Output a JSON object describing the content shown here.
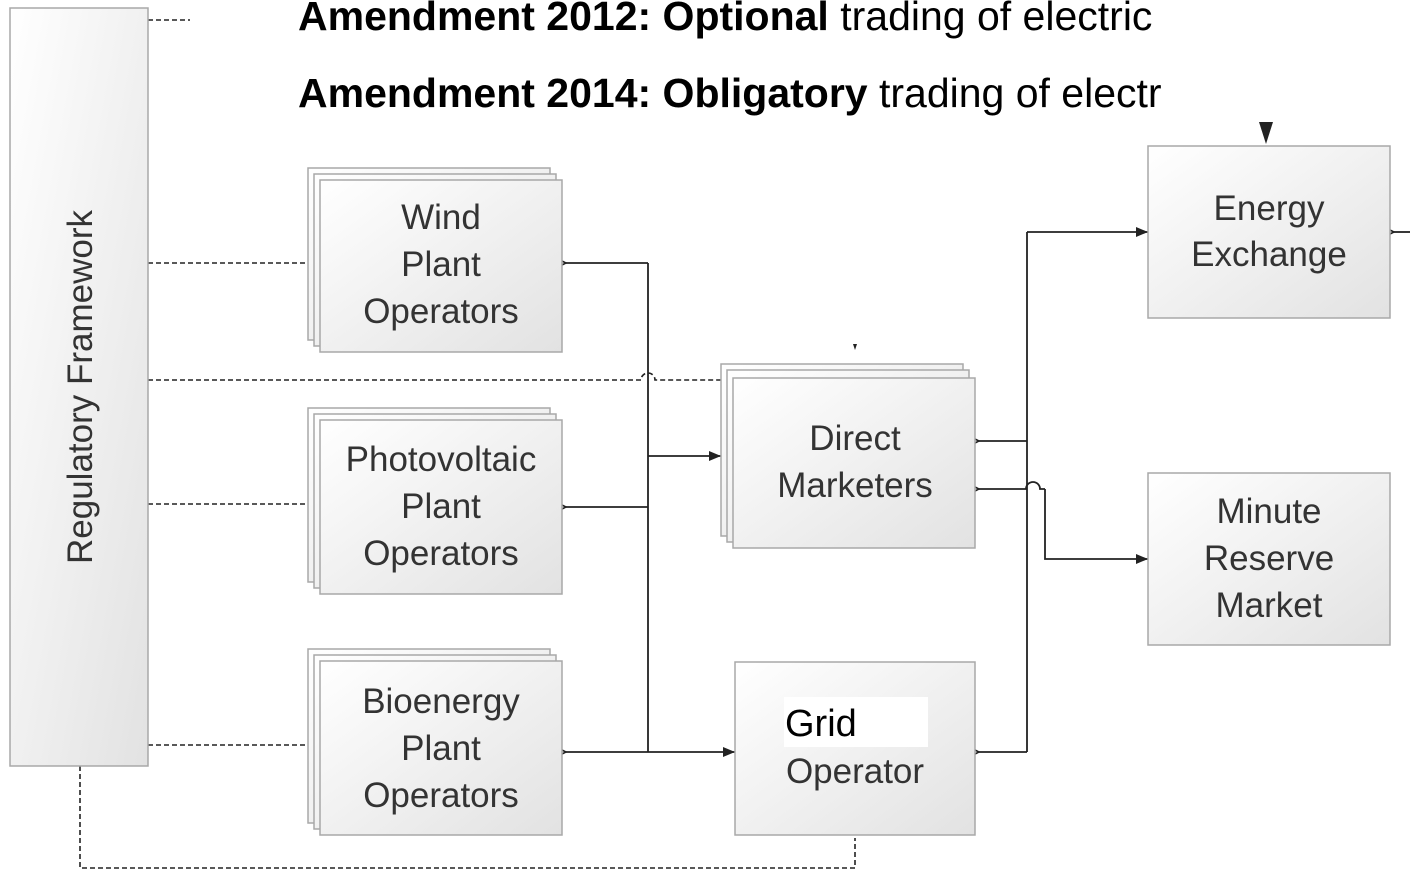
{
  "annotations": [
    {
      "bold": "Amendment 2012: Optional",
      "text": " trading of electric"
    },
    {
      "bold": "Amendment 2014: Obligatory",
      "text": " trading of electr"
    }
  ],
  "nodes": [
    {
      "label": [
        "Regulatory Framework"
      ]
    },
    {
      "label": [
        "Wind",
        "Plant",
        "Operators"
      ]
    },
    {
      "label": [
        "Photovoltaic",
        "Plant",
        "Operators"
      ]
    },
    {
      "label": [
        "Bioenergy",
        "Plant",
        "Operators"
      ]
    },
    {
      "label": [
        "Direct",
        "Marketers"
      ]
    },
    {
      "label": [
        "Grid",
        "Operator"
      ]
    },
    {
      "label": [
        "Energy",
        "Exchange"
      ]
    },
    {
      "label": [
        "Minute",
        "Reserve",
        "Market"
      ]
    }
  ]
}
